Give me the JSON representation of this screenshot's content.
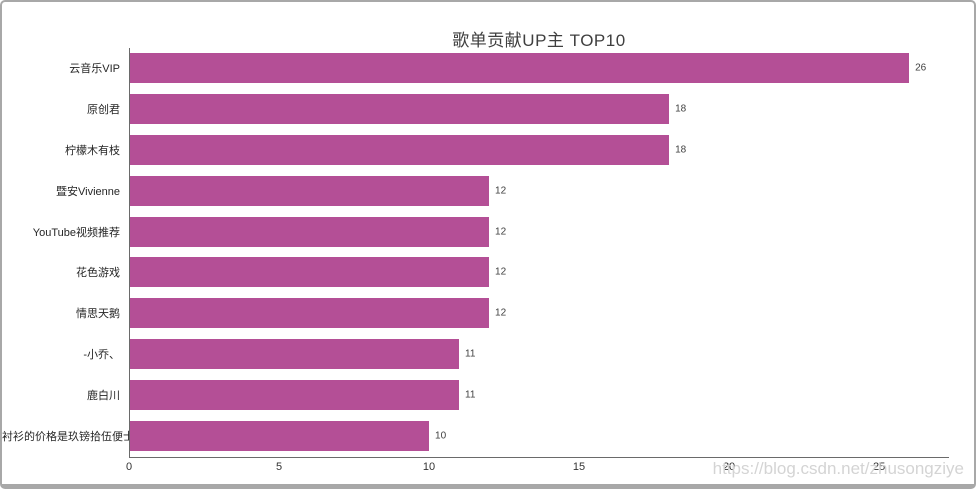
{
  "chart_data": {
    "type": "bar",
    "orientation": "horizontal",
    "title": "歌单贡献UP主 TOP10",
    "categories": [
      "云音乐VIP",
      "原创君",
      "柠檬木有枝",
      "暨安Vivienne",
      "YouTube视频推荐",
      "花色游戏",
      "情思天鹅",
      "-小乔、",
      "鹿白川",
      "衬衫的价格是玖镑拾伍便士"
    ],
    "values": [
      26,
      18,
      18,
      12,
      12,
      12,
      12,
      11,
      11,
      10
    ],
    "xlabel": "",
    "ylabel": "",
    "x_ticks": [
      0,
      5,
      10,
      15,
      20,
      25
    ],
    "xlim": [
      0,
      27.33
    ],
    "grid": false,
    "legend_position": "none",
    "bar_color": "#b44f96",
    "axis_color": "#6a6a6a",
    "title_color": "#3f3f3f"
  },
  "watermark": "https://blog.csdn.net/zhusongziye"
}
